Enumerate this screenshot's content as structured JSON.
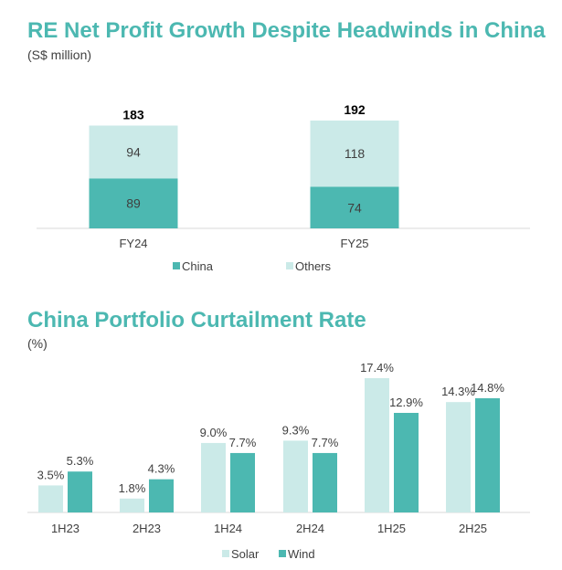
{
  "chart_data": [
    {
      "type": "bar",
      "stacked": true,
      "title": "RE Net Profit Growth Despite Headwinds in China",
      "subtitle": "(S$ million)",
      "categories": [
        "FY24",
        "FY25"
      ],
      "series": [
        {
          "name": "China",
          "values": [
            89,
            74
          ],
          "color": "#4cb8b1"
        },
        {
          "name": "Others",
          "values": [
            94,
            118
          ],
          "color": "#cbeae8"
        }
      ],
      "totals": [
        183,
        192
      ],
      "legend": "bottom"
    },
    {
      "type": "bar",
      "title": "China Portfolio Curtailment Rate",
      "subtitle": "(%)",
      "categories": [
        "1H23",
        "2H23",
        "1H24",
        "2H24",
        "1H25",
        "2H25"
      ],
      "series": [
        {
          "name": "Solar",
          "values": [
            3.5,
            1.8,
            9.0,
            9.3,
            17.4,
            14.3
          ],
          "labels": [
            "3.5%",
            "1.8%",
            "9.0%",
            "9.3%",
            "17.4%",
            "14.3%"
          ],
          "color": "#cbeae8"
        },
        {
          "name": "Wind",
          "values": [
            5.3,
            4.3,
            7.7,
            7.7,
            12.9,
            14.8
          ],
          "labels": [
            "5.3%",
            "4.3%",
            "7.7%",
            "7.7%",
            "12.9%",
            "14.8%"
          ],
          "color": "#4cb8b1"
        }
      ],
      "legend": "bottom"
    }
  ]
}
